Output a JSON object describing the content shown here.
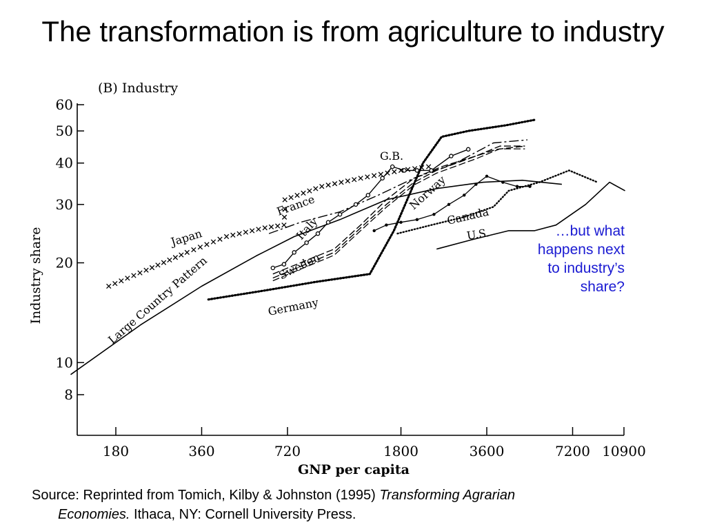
{
  "slide": {
    "title": "The transformation is from agriculture to industry",
    "callout": "…but what happens next to industry’s share?",
    "source": {
      "prefix": "Source:  Reprinted from Tomich, Kilby & Johnston (1995) ",
      "book_part1": "Transforming Agrarian",
      "book_part2": "Economies.",
      "suffix": "  Ithaca, NY: Cornell University Press."
    }
  },
  "chart_data": {
    "type": "line",
    "panel_label": "(B) Industry",
    "xlabel": "GNP per capita",
    "ylabel": "Industry share",
    "x_scale": "log",
    "y_scale": "log",
    "x_ticks": [
      180,
      360,
      720,
      1800,
      3600,
      7200,
      10900
    ],
    "y_ticks": [
      8,
      10,
      20,
      30,
      40,
      50,
      60
    ],
    "xlim": [
      115,
      11000
    ],
    "ylim": [
      7,
      62
    ],
    "grid": false,
    "legend": "none",
    "series": [
      {
        "name": "Japan",
        "style": "cross",
        "points": [
          [
            170,
            17
          ],
          [
            230,
            19
          ],
          [
            320,
            21.5
          ],
          [
            440,
            24
          ],
          [
            600,
            25.5
          ],
          [
            700,
            26
          ],
          [
            705,
            29
          ],
          [
            705,
            31
          ],
          [
            950,
            34
          ],
          [
            1300,
            36
          ],
          [
            1800,
            38
          ],
          [
            2250,
            39
          ]
        ]
      },
      {
        "name": "Large Country Pattern",
        "style": "solid",
        "points": [
          [
            125,
            9.2
          ],
          [
            220,
            13
          ],
          [
            360,
            17
          ],
          [
            560,
            21
          ],
          [
            760,
            24
          ],
          [
            1100,
            27
          ],
          [
            1600,
            31
          ],
          [
            2400,
            33.5
          ],
          [
            3500,
            35
          ],
          [
            4800,
            35.5
          ],
          [
            6600,
            34.5
          ]
        ]
      },
      {
        "name": "France",
        "style": "dashdot",
        "points": [
          [
            620,
            24.5
          ],
          [
            800,
            26.5
          ],
          [
            1100,
            28.5
          ],
          [
            1500,
            32
          ],
          [
            2000,
            36
          ],
          [
            2800,
            40
          ],
          [
            3800,
            46
          ],
          [
            5000,
            47
          ]
        ]
      },
      {
        "name": "Italy",
        "style": "dashed",
        "points": [
          [
            640,
            18.5
          ],
          [
            800,
            20
          ],
          [
            1050,
            22
          ],
          [
            1300,
            26
          ],
          [
            1600,
            31
          ],
          [
            2000,
            36
          ],
          [
            2500,
            39
          ],
          [
            3300,
            42
          ],
          [
            3900,
            44
          ],
          [
            4900,
            45
          ]
        ]
      },
      {
        "name": "Sweden",
        "style": "dashed",
        "points": [
          [
            640,
            18
          ],
          [
            800,
            19.5
          ],
          [
            1050,
            21.5
          ],
          [
            1300,
            25.5
          ],
          [
            1600,
            30
          ],
          [
            2000,
            35
          ],
          [
            2400,
            38
          ],
          [
            3300,
            42
          ],
          [
            4000,
            45
          ],
          [
            4900,
            45
          ]
        ]
      },
      {
        "name": "G.B.",
        "style": "circle",
        "points": [
          [
            640,
            19.3
          ],
          [
            700,
            19.8
          ],
          [
            760,
            21.5
          ],
          [
            840,
            23
          ],
          [
            920,
            24.5
          ],
          [
            1000,
            26.5
          ],
          [
            1100,
            28
          ],
          [
            1250,
            30
          ],
          [
            1380,
            32
          ],
          [
            1550,
            36
          ],
          [
            1680,
            39
          ],
          [
            1850,
            38
          ],
          [
            2050,
            38
          ],
          [
            2300,
            38
          ],
          [
            2700,
            42
          ],
          [
            3100,
            44
          ]
        ]
      },
      {
        "name": "Norway",
        "style": "dot",
        "points": [
          [
            1450,
            25
          ],
          [
            1600,
            26
          ],
          [
            1800,
            26.5
          ],
          [
            2050,
            27
          ],
          [
            2350,
            28
          ],
          [
            2650,
            30
          ],
          [
            3000,
            32
          ],
          [
            3300,
            34.5
          ],
          [
            3600,
            36.5
          ],
          [
            4100,
            35
          ],
          [
            4600,
            34
          ],
          [
            5100,
            34
          ]
        ]
      },
      {
        "name": "Germany",
        "style": "dotted-heavy",
        "points": [
          [
            380,
            15.5
          ],
          [
            600,
            16.5
          ],
          [
            900,
            17.5
          ],
          [
            1400,
            18.5
          ],
          [
            1700,
            25
          ],
          [
            2150,
            40
          ],
          [
            2500,
            48
          ],
          [
            3100,
            50
          ],
          [
            4200,
            52
          ],
          [
            5300,
            54
          ]
        ]
      },
      {
        "name": "Canada",
        "style": "dotted",
        "points": [
          [
            1750,
            24.5
          ],
          [
            2300,
            26
          ],
          [
            3000,
            27.5
          ],
          [
            3800,
            29.5
          ],
          [
            4300,
            33
          ],
          [
            5500,
            35
          ],
          [
            7000,
            38
          ],
          [
            8800,
            35
          ]
        ]
      },
      {
        "name": "U.S.",
        "style": "solid",
        "points": [
          [
            2400,
            22
          ],
          [
            3200,
            23.5
          ],
          [
            4300,
            25
          ],
          [
            5300,
            25
          ],
          [
            6300,
            26
          ],
          [
            8000,
            30
          ],
          [
            9700,
            35
          ],
          [
            11000,
            33
          ]
        ]
      }
    ],
    "annotations": [
      "Japan",
      "Large Country Pattern",
      "France",
      "Italy",
      "Sweden",
      "G.B.",
      "Norway",
      "Germany",
      "Canada",
      "U.S."
    ]
  }
}
